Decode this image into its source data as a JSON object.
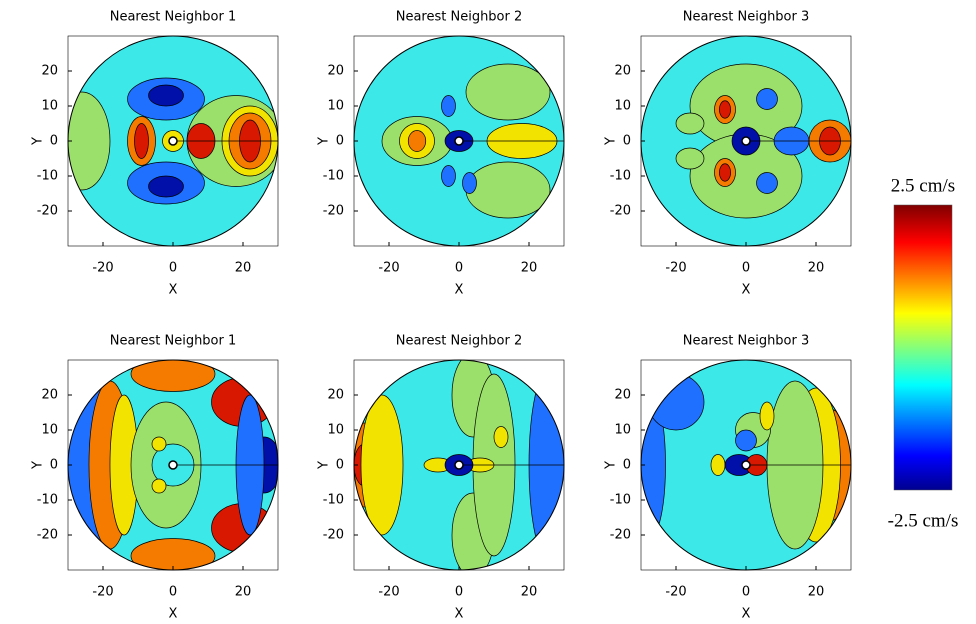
{
  "chart_data": [
    {
      "type": "contour",
      "title": "Nearest Neighbor 1",
      "xlabel": "X",
      "ylabel": "Y",
      "xlim": [
        -30,
        30
      ],
      "ylim": [
        -30,
        30
      ],
      "xticks": [
        -20,
        0,
        20
      ],
      "yticks": [
        -20,
        -10,
        0,
        10,
        20
      ]
    },
    {
      "type": "contour",
      "title": "Nearest Neighbor 2",
      "xlabel": "X",
      "ylabel": "Y",
      "xlim": [
        -30,
        30
      ],
      "ylim": [
        -30,
        30
      ],
      "xticks": [
        -20,
        0,
        20
      ],
      "yticks": [
        -20,
        -10,
        0,
        10,
        20
      ]
    },
    {
      "type": "contour",
      "title": "Nearest Neighbor 3",
      "xlabel": "X",
      "ylabel": "Y",
      "xlim": [
        -30,
        30
      ],
      "ylim": [
        -30,
        30
      ],
      "xticks": [
        -20,
        0,
        20
      ],
      "yticks": [
        -20,
        -10,
        0,
        10,
        20
      ]
    },
    {
      "type": "contour",
      "title": "Nearest Neighbor 1",
      "xlabel": "X",
      "ylabel": "Y",
      "xlim": [
        -30,
        30
      ],
      "ylim": [
        -30,
        30
      ],
      "xticks": [
        -20,
        0,
        20
      ],
      "yticks": [
        -20,
        -10,
        0,
        10,
        20
      ]
    },
    {
      "type": "contour",
      "title": "Nearest Neighbor 2",
      "xlabel": "X",
      "ylabel": "Y",
      "xlim": [
        -30,
        30
      ],
      "ylim": [
        -30,
        30
      ],
      "xticks": [
        -20,
        0,
        20
      ],
      "yticks": [
        -20,
        -10,
        0,
        10,
        20
      ]
    },
    {
      "type": "contour",
      "title": "Nearest Neighbor 3",
      "xlabel": "X",
      "ylabel": "Y",
      "xlim": [
        -30,
        30
      ],
      "ylim": [
        -30,
        30
      ],
      "xticks": [
        -20,
        0,
        20
      ],
      "yticks": [
        -20,
        -10,
        0,
        10,
        20
      ]
    }
  ],
  "colorbar": {
    "lim": [
      -2.5,
      2.5
    ],
    "ticks": [
      {
        "value": 2.5,
        "label": "2.5 cm/s"
      },
      {
        "value": -2.5,
        "label": "-2.5 cm/s"
      }
    ]
  }
}
